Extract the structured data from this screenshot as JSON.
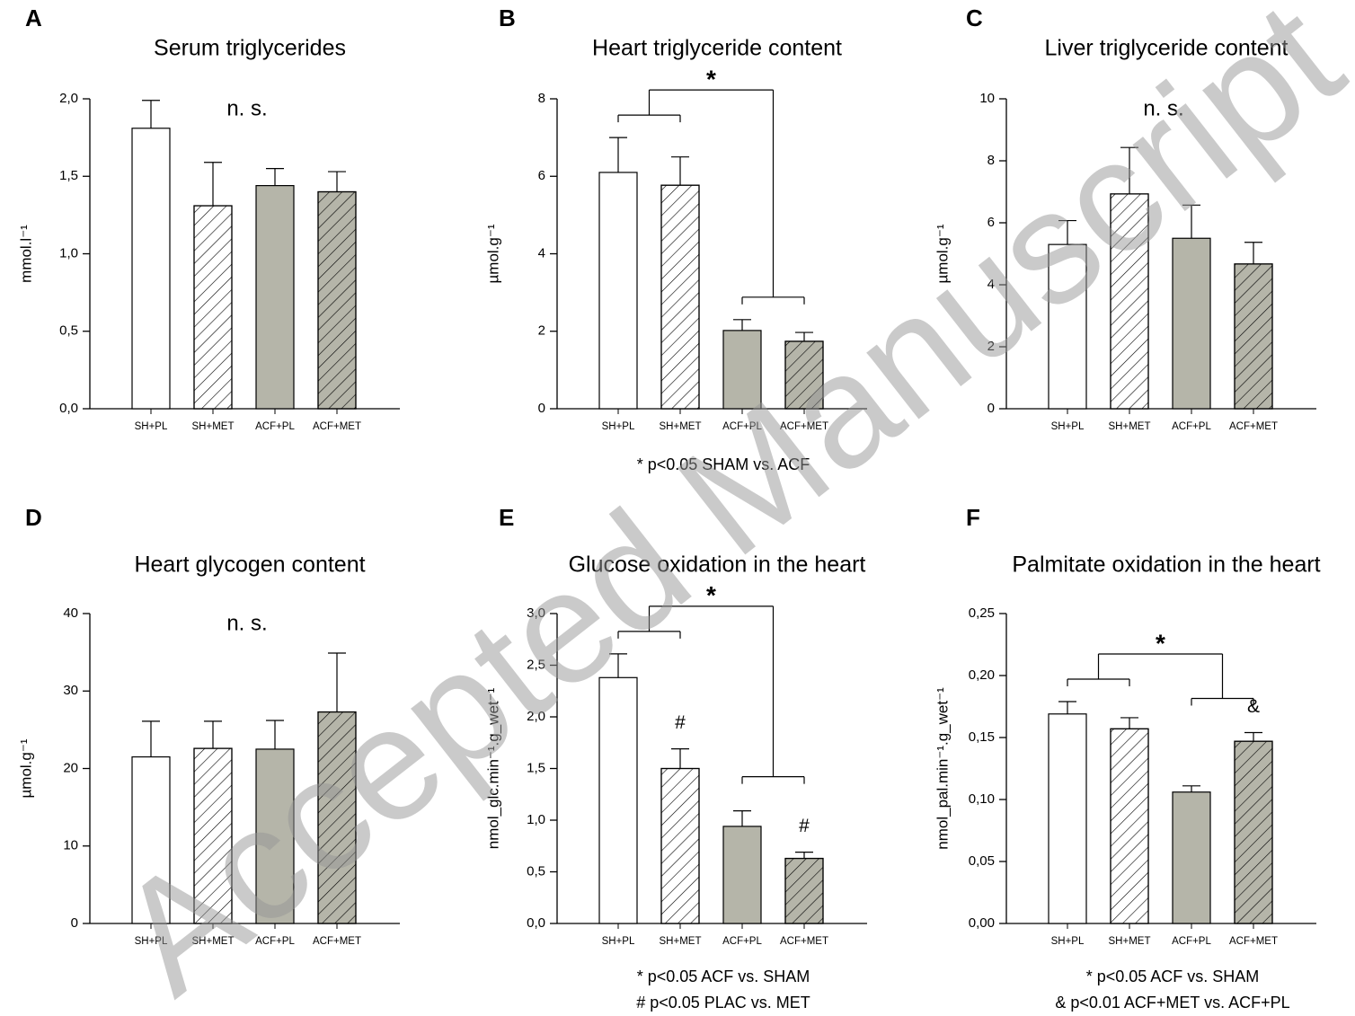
{
  "watermark": "Accepted Manuscript",
  "chart_data": [
    {
      "type": "bar",
      "label": "A",
      "title": "Serum triglycerides",
      "y_label": "mmol.l⁻¹",
      "categories": [
        "SH+PL",
        "SH+MET",
        "ACF+PL",
        "ACF+MET"
      ],
      "values": [
        1.81,
        1.31,
        1.44,
        1.4
      ],
      "errors": [
        0.18,
        0.28,
        0.11,
        0.13
      ],
      "colors": [
        "#ffffff",
        "#ffffff",
        "#b5b5a9",
        "#b5b5a9"
      ],
      "hatched": [
        false,
        true,
        false,
        true
      ],
      "ylim": [
        0,
        2
      ],
      "yticks": [
        {
          "value": 0,
          "label": "0,0"
        },
        {
          "value": 0.5,
          "label": "0,5"
        },
        {
          "value": 1,
          "label": "1,0"
        },
        {
          "value": 1.5,
          "label": "1,5"
        },
        {
          "value": 2,
          "label": "2,0"
        }
      ],
      "annotation": "n. s."
    },
    {
      "type": "bar",
      "label": "B",
      "title": "Heart triglyceride content",
      "y_label": "µmol.g⁻¹",
      "categories": [
        "SH+PL",
        "SH+MET",
        "ACF+PL",
        "ACF+MET"
      ],
      "values": [
        6.1,
        5.77,
        2.02,
        1.74
      ],
      "errors": [
        0.9,
        0.73,
        0.28,
        0.23
      ],
      "colors": [
        "#ffffff",
        "#ffffff",
        "#b5b5a9",
        "#b5b5a9"
      ],
      "hatched": [
        false,
        true,
        false,
        true
      ],
      "ylim": [
        0,
        8
      ],
      "yticks": [
        0,
        2,
        4,
        6,
        8
      ],
      "significance": "*",
      "footnotes": [
        "* p<0.05 SHAM vs. ACF"
      ]
    },
    {
      "type": "bar",
      "label": "C",
      "title": "Liver triglyceride content",
      "y_label": "µmol.g⁻¹",
      "categories": [
        "SH+PL",
        "SH+MET",
        "ACF+PL",
        "ACF+MET"
      ],
      "values": [
        5.3,
        6.93,
        5.5,
        4.67
      ],
      "errors": [
        0.77,
        1.5,
        1.07,
        0.7
      ],
      "colors": [
        "#ffffff",
        "#ffffff",
        "#b5b5a9",
        "#b5b5a9"
      ],
      "hatched": [
        false,
        true,
        false,
        true
      ],
      "ylim": [
        0,
        10
      ],
      "yticks": [
        0,
        2,
        4,
        6,
        8,
        10
      ],
      "annotation": "n. s."
    },
    {
      "type": "bar",
      "label": "D",
      "title": "Heart glycogen content",
      "y_label": "µmol.g⁻¹",
      "categories": [
        "SH+PL",
        "SH+MET",
        "ACF+PL",
        "ACF+MET"
      ],
      "values": [
        21.5,
        22.6,
        22.5,
        27.3
      ],
      "errors": [
        4.6,
        3.5,
        3.7,
        7.6
      ],
      "colors": [
        "#ffffff",
        "#ffffff",
        "#b5b5a9",
        "#b5b5a9"
      ],
      "hatched": [
        false,
        true,
        false,
        true
      ],
      "ylim": [
        0,
        40
      ],
      "yticks": [
        0,
        10,
        20,
        30,
        40
      ],
      "annotation": "n. s."
    },
    {
      "type": "bar",
      "label": "E",
      "title": "Glucose oxidation in the heart",
      "y_label": "nmol_glc.min⁻¹.g_wet⁻¹",
      "categories": [
        "SH+PL",
        "SH+MET",
        "ACF+PL",
        "ACF+MET"
      ],
      "values": [
        2.38,
        1.5,
        0.94,
        0.63
      ],
      "errors": [
        0.23,
        0.19,
        0.15,
        0.06
      ],
      "colors": [
        "#ffffff",
        "#ffffff",
        "#b5b5a9",
        "#b5b5a9"
      ],
      "hatched": [
        false,
        true,
        false,
        true
      ],
      "ylim": [
        0,
        3
      ],
      "yticks": [
        {
          "value": 0,
          "label": "0,0"
        },
        {
          "value": 0.5,
          "label": "0,5"
        },
        {
          "value": 1,
          "label": "1,0"
        },
        {
          "value": 1.5,
          "label": "1,5"
        },
        {
          "value": 2,
          "label": "2,0"
        },
        {
          "value": 2.5,
          "label": "2,5"
        },
        {
          "value": 3,
          "label": "3,0"
        }
      ],
      "significance": "*",
      "bar_labels": [
        null,
        "#",
        null,
        "#"
      ],
      "footnotes": [
        "* p<0.05 ACF vs. SHAM",
        "# p<0.05 PLAC vs. MET"
      ]
    },
    {
      "type": "bar",
      "label": "F",
      "title": "Palmitate oxidation in the heart",
      "y_label": "nmol_pal.min⁻¹.g_wet⁻¹",
      "categories": [
        "SH+PL",
        "SH+MET",
        "ACF+PL",
        "ACF+MET"
      ],
      "values": [
        0.169,
        0.157,
        0.106,
        0.147
      ],
      "errors": [
        0.01,
        0.009,
        0.005,
        0.007
      ],
      "colors": [
        "#ffffff",
        "#ffffff",
        "#b5b5a9",
        "#b5b5a9"
      ],
      "hatched": [
        false,
        true,
        false,
        true
      ],
      "ylim": [
        0,
        0.25
      ],
      "yticks": [
        {
          "value": 0,
          "label": "0,00"
        },
        {
          "value": 0.05,
          "label": "0,05"
        },
        {
          "value": 0.1,
          "label": "0,10"
        },
        {
          "value": 0.15,
          "label": "0,15"
        },
        {
          "value": 0.2,
          "label": "0,20"
        },
        {
          "value": 0.25,
          "label": "0,25"
        }
      ],
      "significance": "*",
      "bar_labels": [
        null,
        null,
        null,
        "&"
      ],
      "footnotes": [
        "* p<0.05 ACF vs. SHAM",
        "& p<0.01 ACF+MET vs. ACF+PL"
      ]
    }
  ]
}
